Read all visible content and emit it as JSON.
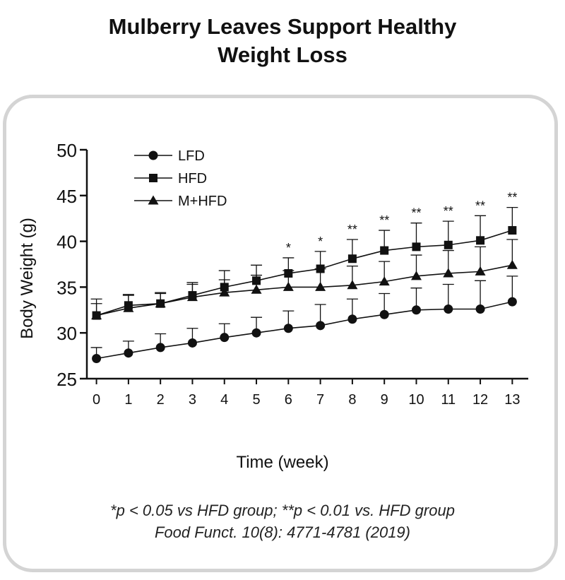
{
  "header": {
    "title_line1": "Mulberry Leaves Support Healthy",
    "title_line2": "Weight Loss"
  },
  "footnotes": {
    "significance": "*p < 0.05 vs HFD group; **p < 0.01 vs.  HFD group",
    "citation": "Food Funct. 10(8): 4771-4781 (2019)"
  },
  "chart_data": {
    "type": "line",
    "title": "Mulberry Leaves Support Healthy Weight Loss",
    "xlabel": "Time (week)",
    "ylabel": "Body Weight (g)",
    "x": [
      0,
      1,
      2,
      3,
      4,
      5,
      6,
      7,
      8,
      9,
      10,
      11,
      12,
      13
    ],
    "xlim": [
      -0.3,
      13.5
    ],
    "ylim": [
      25,
      50
    ],
    "yticks": [
      25,
      30,
      35,
      40,
      45,
      50
    ],
    "grid": false,
    "legend_position": "top-left",
    "series": [
      {
        "name": "LFD",
        "marker": "circle",
        "values": [
          27.2,
          27.8,
          28.4,
          28.9,
          29.5,
          30.0,
          30.5,
          30.8,
          31.5,
          32.0,
          32.5,
          32.6,
          32.6,
          33.4
        ],
        "error": [
          1.2,
          1.3,
          1.5,
          1.6,
          1.5,
          1.7,
          1.9,
          2.3,
          2.2,
          2.3,
          2.4,
          2.7,
          3.1,
          2.8
        ]
      },
      {
        "name": "HFD",
        "marker": "square",
        "values": [
          31.9,
          33.0,
          33.2,
          34.1,
          35.0,
          35.7,
          36.5,
          37.0,
          38.1,
          39.0,
          39.4,
          39.6,
          40.1,
          41.2
        ],
        "error": [
          1.8,
          1.2,
          1.2,
          1.4,
          1.8,
          1.7,
          1.7,
          1.9,
          2.1,
          2.2,
          2.6,
          2.6,
          2.7,
          2.5
        ]
      },
      {
        "name": "M+HFD",
        "marker": "triangle",
        "values": [
          31.9,
          32.7,
          33.2,
          33.9,
          34.4,
          34.7,
          35.0,
          35.0,
          35.2,
          35.6,
          36.2,
          36.5,
          36.7,
          37.4
        ],
        "error": [
          1.3,
          1.4,
          1.1,
          1.4,
          1.4,
          1.6,
          1.8,
          2.0,
          2.1,
          2.2,
          2.3,
          2.5,
          2.7,
          2.8
        ]
      }
    ],
    "annotations": [
      "",
      "",
      "",
      "",
      "",
      "",
      "*",
      "*",
      "**",
      "**",
      "**",
      "**",
      "**",
      "**"
    ]
  }
}
